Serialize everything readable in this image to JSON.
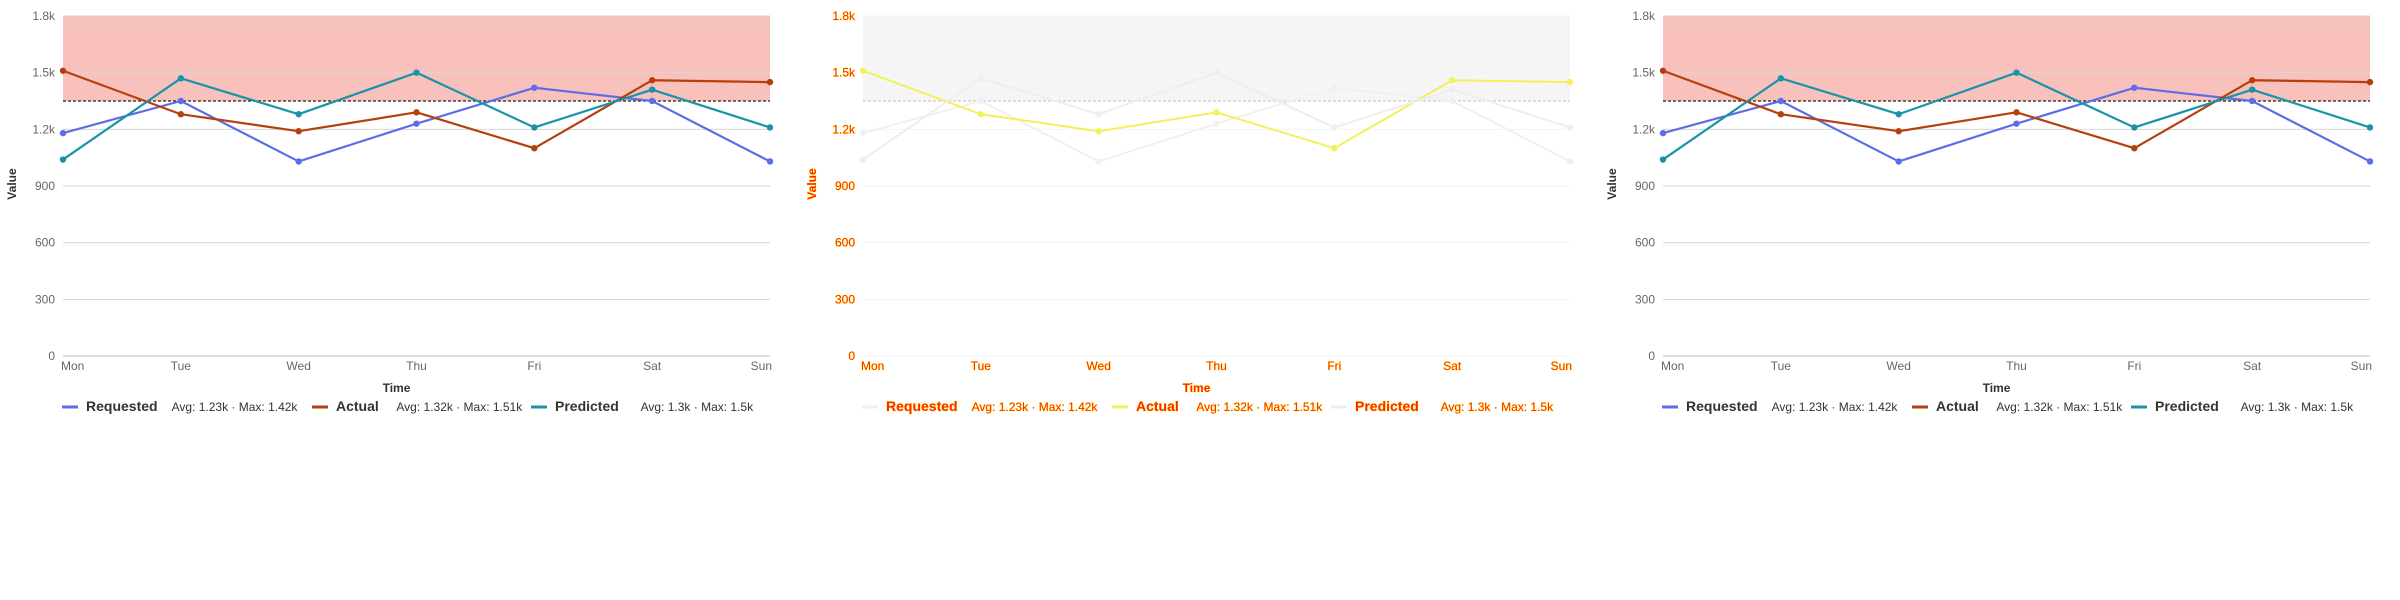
{
  "chart_data": [
    {
      "type": "line",
      "xlabel": "Time",
      "ylabel": "Value",
      "categories": [
        "Mon",
        "Tue",
        "Wed",
        "Thu",
        "Fri",
        "Sat",
        "Sun"
      ],
      "ylim": [
        0,
        1800
      ],
      "yticks": [
        "0",
        "300",
        "600",
        "900",
        "1.2k",
        "1.5k",
        "1.8k"
      ],
      "band": {
        "from": 1350,
        "to": 1800,
        "color": "#f5a097",
        "threshold": 1350
      },
      "grid": true,
      "legend_position": "bottom-left",
      "series": [
        {
          "name": "Requested",
          "color": "#5b6ee8",
          "values": [
            1180,
            1350,
            1030,
            1230,
            1420,
            1350,
            1030
          ],
          "stats": "Avg: 1.23k · Max: 1.42k"
        },
        {
          "name": "Actual",
          "color": "#b5400d",
          "values": [
            1510,
            1280,
            1190,
            1290,
            1100,
            1460,
            1450
          ],
          "stats": "Avg: 1.32k · Max: 1.51k"
        },
        {
          "name": "Predicted",
          "color": "#1a93a8",
          "values": [
            1040,
            1470,
            1280,
            1500,
            1210,
            1410,
            1210
          ],
          "stats": "Avg: 1.3k · Max: 1.5k"
        }
      ]
    },
    {
      "type": "line",
      "xlabel": "Time",
      "ylabel": "Value",
      "categories": [
        "Mon",
        "Tue",
        "Wed",
        "Thu",
        "Fri",
        "Sat",
        "Sun"
      ],
      "ylim": [
        0,
        1800
      ],
      "yticks": [
        "0",
        "300",
        "600",
        "900",
        "1.2k",
        "1.5k",
        "1.8k"
      ],
      "band": {
        "from": 1350,
        "to": 1800,
        "color": "#f4f4f4",
        "threshold": 1350
      },
      "grid": true,
      "legend_position": "bottom-left",
      "series": [
        {
          "name": "Requested",
          "color": "#f0f0f0",
          "values": [
            1180,
            1350,
            1030,
            1230,
            1420,
            1350,
            1030
          ],
          "stats": "Avg: 1.23k · Max: 1.42k"
        },
        {
          "name": "Actual",
          "color": "#f3f05a",
          "values": [
            1510,
            1280,
            1190,
            1290,
            1100,
            1460,
            1450
          ],
          "stats": "Avg: 1.32k · Max: 1.51k"
        },
        {
          "name": "Predicted",
          "color": "#eeeeee",
          "values": [
            1040,
            1470,
            1280,
            1500,
            1210,
            1410,
            1210
          ],
          "stats": "Avg: 1.3k · Max: 1.5k"
        }
      ]
    },
    {
      "type": "line",
      "xlabel": "Time",
      "ylabel": "Value",
      "categories": [
        "Mon",
        "Tue",
        "Wed",
        "Thu",
        "Fri",
        "Sat",
        "Sun"
      ],
      "ylim": [
        0,
        1800
      ],
      "yticks": [
        "0",
        "300",
        "600",
        "900",
        "1.2k",
        "1.5k",
        "1.8k"
      ],
      "band": {
        "from": 1350,
        "to": 1800,
        "color": "#f5a097",
        "threshold": 1350
      },
      "grid": true,
      "legend_position": "bottom-left",
      "series": [
        {
          "name": "Requested",
          "color": "#5b6ee8",
          "values": [
            1180,
            1350,
            1030,
            1230,
            1420,
            1350,
            1030
          ],
          "stats": "Avg: 1.23k · Max: 1.42k"
        },
        {
          "name": "Actual",
          "color": "#b5400d",
          "values": [
            1510,
            1280,
            1190,
            1290,
            1100,
            1460,
            1450
          ],
          "stats": "Avg: 1.32k · Max: 1.51k"
        },
        {
          "name": "Predicted",
          "color": "#1a93a8",
          "values": [
            1040,
            1470,
            1280,
            1500,
            1210,
            1410,
            1210
          ],
          "stats": "Avg: 1.3k · Max: 1.5k"
        }
      ]
    }
  ]
}
